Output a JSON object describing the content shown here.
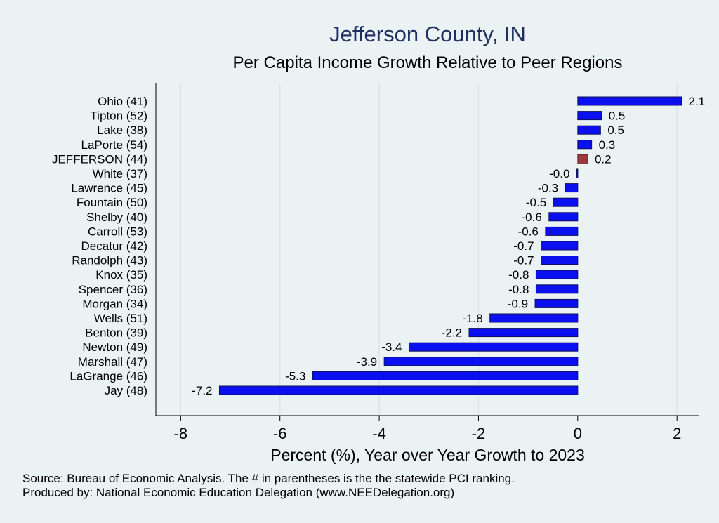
{
  "chart_data": {
    "type": "bar",
    "orientation": "horizontal",
    "title": "Jefferson County, IN",
    "subtitle": "Per Capita Income Growth Relative to Peer Regions",
    "xlabel": "Percent (%), Year over Year Growth to 2023",
    "ylabel": "",
    "xlim": [
      -8.5,
      2.45
    ],
    "xticks": [
      -8,
      -6,
      -4,
      -2,
      0,
      2
    ],
    "grid": true,
    "categories": [
      "Ohio (41)",
      "Tipton (52)",
      "Lake (38)",
      "LaPorte (54)",
      "JEFFERSON (44)",
      "White (37)",
      "Lawrence (45)",
      "Fountain (50)",
      "Shelby (40)",
      "Carroll (53)",
      "Decatur (42)",
      "Randolph (43)",
      "Knox (35)",
      "Spencer (36)",
      "Morgan (34)",
      "Wells (51)",
      "Benton (39)",
      "Newton (49)",
      "Marshall (47)",
      "LaGrange (46)",
      "Jay (48)"
    ],
    "values": [
      2.09,
      0.48,
      0.46,
      0.28,
      0.2,
      -0.02,
      -0.25,
      -0.49,
      -0.58,
      -0.65,
      -0.74,
      -0.74,
      -0.84,
      -0.84,
      -0.86,
      -1.77,
      -2.19,
      -3.4,
      -3.9,
      -5.34,
      -7.22
    ],
    "labels": [
      "2.1",
      "0.5",
      "0.5",
      "0.3",
      "0.2",
      "-0.0",
      "-0.3",
      "-0.5",
      "-0.6",
      "-0.6",
      "-0.7",
      "-0.7",
      "-0.8",
      "-0.8",
      "-0.9",
      "-1.8",
      "-2.2",
      "-3.4",
      "-3.9",
      "-5.3",
      "-7.2"
    ],
    "highlight_index": 4,
    "colors": {
      "bar": "#0a10f0",
      "highlight": "#a0393f",
      "bar_edge": "#10105a",
      "grid": "#d6e4e9",
      "title": "#1f3060"
    }
  },
  "footer": {
    "source": "Source: Bureau of Economic Analysis. The # in parentheses is the the statewide PCI ranking.",
    "producer": "Produced by: National Economic Education Delegation (www.NEEDelegation.org)"
  }
}
